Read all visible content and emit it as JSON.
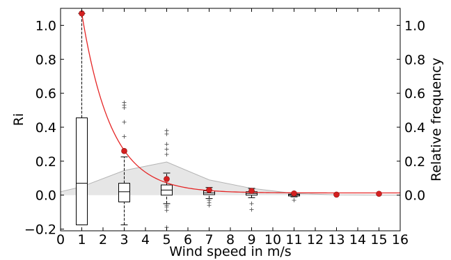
{
  "chart_data": {
    "type": "boxplot",
    "title": "",
    "xlabel": "Wind speed in m/s",
    "ylabel": "Ri",
    "y2label": "Relative frequency",
    "xlim": [
      0,
      16
    ],
    "ylim": [
      -0.21,
      1.1
    ],
    "x_ticks": [
      0,
      1,
      2,
      3,
      4,
      5,
      6,
      7,
      8,
      9,
      10,
      11,
      12,
      13,
      14,
      15,
      16
    ],
    "y_ticks": [
      -0.2,
      0.0,
      0.2,
      0.4,
      0.6,
      0.8,
      1.0
    ],
    "y_tick_labels": [
      "−0.2",
      "0.0",
      "0.2",
      "0.4",
      "0.6",
      "0.8",
      "1.0"
    ],
    "y2_ticks": [
      0.0,
      0.2,
      0.4,
      0.6,
      0.8,
      1.0
    ],
    "y2_tick_labels": [
      "0.0",
      "0.2",
      "0.4",
      "0.6",
      "0.8",
      "1.0"
    ],
    "grid": false,
    "boxplots": [
      {
        "x": 1,
        "whislo": -0.175,
        "q1": -0.175,
        "med": 0.07,
        "q3": 0.455,
        "whishi": 1.07,
        "fliers": []
      },
      {
        "x": 3,
        "whislo": -0.175,
        "q1": -0.04,
        "med": 0.02,
        "q3": 0.07,
        "whishi": 0.225,
        "fliers": [
          0.345,
          0.43,
          0.515,
          0.53,
          0.545
        ]
      },
      {
        "x": 5,
        "whislo": -0.05,
        "q1": 0.0,
        "med": 0.03,
        "q3": 0.06,
        "whishi": 0.13,
        "fliers": [
          -0.06,
          -0.07,
          -0.09,
          -0.19,
          0.24,
          0.27,
          0.3,
          0.36,
          0.38
        ]
      },
      {
        "x": 7,
        "whislo": -0.02,
        "q1": 0.003,
        "med": 0.013,
        "q3": 0.025,
        "whishi": 0.045,
        "fliers": [
          -0.03,
          -0.045,
          -0.06
        ]
      },
      {
        "x": 9,
        "whislo": -0.015,
        "q1": 0.0,
        "med": 0.01,
        "q3": 0.02,
        "whishi": 0.04,
        "fliers": [
          -0.05,
          -0.085
        ]
      },
      {
        "x": 11,
        "whislo": -0.01,
        "q1": -0.005,
        "med": 0.002,
        "q3": 0.006,
        "whishi": 0.012,
        "fliers": [
          -0.03
        ]
      }
    ],
    "frequency_area": {
      "x": [
        0,
        1,
        3,
        5,
        7,
        9,
        11,
        13,
        15,
        16
      ],
      "y": [
        0.02,
        0.05,
        0.145,
        0.195,
        0.09,
        0.04,
        0.01,
        0.002,
        0.0,
        0.0
      ],
      "color": "#e6e6e6",
      "edge_color": "#b3b3b3"
    },
    "red_points": {
      "x": [
        1,
        3,
        5,
        7,
        9,
        11,
        13,
        15
      ],
      "y": [
        1.07,
        0.26,
        0.095,
        0.03,
        0.025,
        0.01,
        0.003,
        0.008
      ],
      "color": "#d42020"
    },
    "fit_curve": {
      "y0": 1.07,
      "x0": 1,
      "decay": 0.72,
      "offset": 0.013,
      "color": "#e52525"
    }
  }
}
